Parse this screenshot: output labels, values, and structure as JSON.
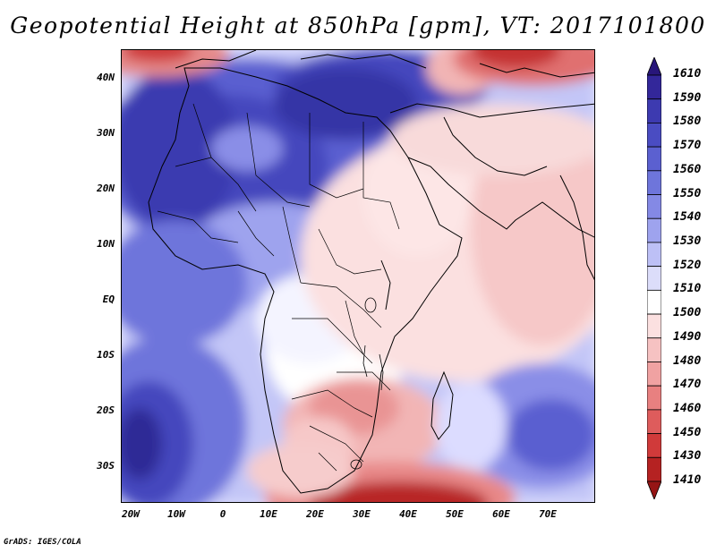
{
  "title": "Geopotential Height at 850hPa [gpm], VT: 2017101800",
  "credit": "GrADS: IGES/COLA",
  "lat_labels": [
    "40N",
    "30N",
    "20N",
    "10N",
    "EQ",
    "10S",
    "20S",
    "30S"
  ],
  "lon_labels": [
    "20W",
    "10W",
    "0",
    "10E",
    "20E",
    "30E",
    "40E",
    "50E",
    "60E",
    "70E"
  ],
  "colorbar": {
    "levels": [
      "1610",
      "1590",
      "1580",
      "1570",
      "1560",
      "1550",
      "1540",
      "1530",
      "1520",
      "1510",
      "1500",
      "1490",
      "1480",
      "1470",
      "1460",
      "1450",
      "1430",
      "1410"
    ],
    "colors": [
      "#28167a",
      "#33279a",
      "#3d3ab0",
      "#4a4cc2",
      "#5b60d0",
      "#6e75db",
      "#8489e5",
      "#9ea3ee",
      "#bdc0f6",
      "#dcddfa",
      "#ffffff",
      "#fbe0e0",
      "#f6c2c2",
      "#f0a2a2",
      "#e88080",
      "#de5c5c",
      "#d03a3a",
      "#b52222",
      "#961515"
    ]
  },
  "map_region": {
    "lon_range": [
      -22,
      80
    ],
    "lat_range": [
      -37,
      45
    ]
  }
}
